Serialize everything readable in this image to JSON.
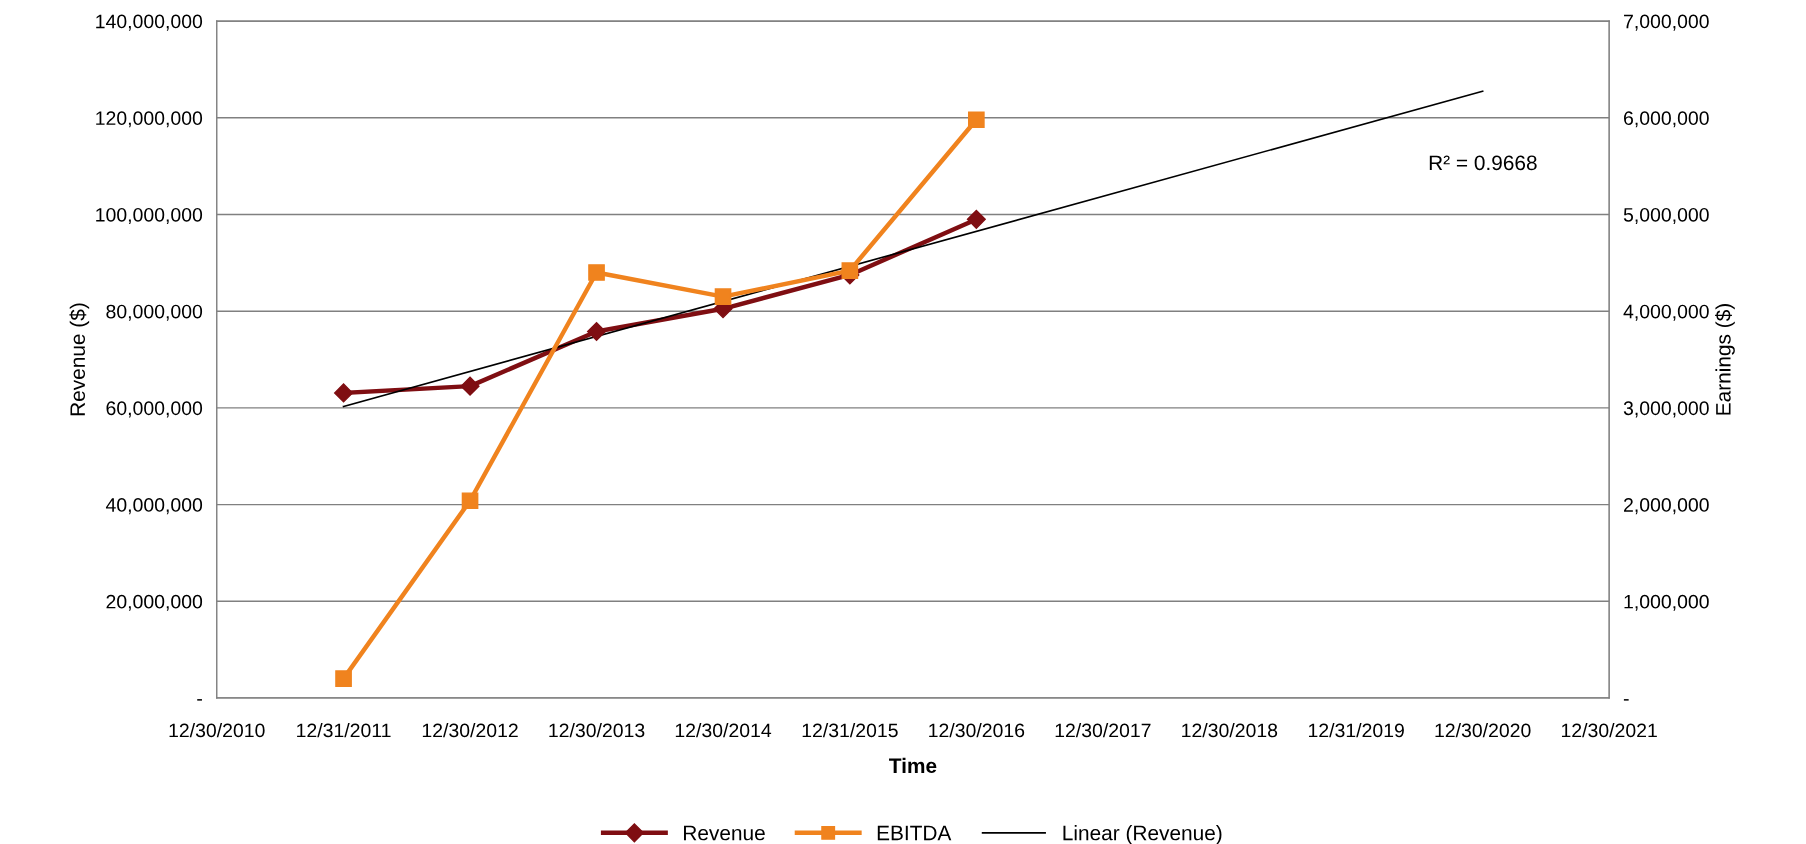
{
  "chart_data": {
    "type": "line",
    "xlabel": "Time",
    "ylabel": "Revenue ($)",
    "y2label": "Earnings ($)",
    "xlim": [
      "2010-12-30",
      "2021-12-30"
    ],
    "xticks": [
      {
        "value": "2010-12-30",
        "label": "12/30/2010"
      },
      {
        "value": "2011-12-31",
        "label": "12/31/2011"
      },
      {
        "value": "2012-12-30",
        "label": "12/30/2012"
      },
      {
        "value": "2013-12-30",
        "label": "12/30/2013"
      },
      {
        "value": "2014-12-30",
        "label": "12/30/2014"
      },
      {
        "value": "2015-12-31",
        "label": "12/31/2015"
      },
      {
        "value": "2016-12-30",
        "label": "12/30/2016"
      },
      {
        "value": "2017-12-30",
        "label": "12/30/2017"
      },
      {
        "value": "2018-12-30",
        "label": "12/30/2018"
      },
      {
        "value": "2019-12-31",
        "label": "12/31/2019"
      },
      {
        "value": "2020-12-30",
        "label": "12/30/2020"
      },
      {
        "value": "2021-12-30",
        "label": "12/30/2021"
      }
    ],
    "ylim": [
      0,
      140000000
    ],
    "yticks": [
      {
        "value": 0,
        "label": "-"
      },
      {
        "value": 20000000,
        "label": "20,000,000"
      },
      {
        "value": 40000000,
        "label": "40,000,000"
      },
      {
        "value": 60000000,
        "label": "60,000,000"
      },
      {
        "value": 80000000,
        "label": "80,000,000"
      },
      {
        "value": 100000000,
        "label": "100,000,000"
      },
      {
        "value": 120000000,
        "label": "120,000,000"
      },
      {
        "value": 140000000,
        "label": "140,000,000"
      }
    ],
    "y2lim": [
      0,
      7000000
    ],
    "y2ticks": [
      {
        "value": 0,
        "label": "-"
      },
      {
        "value": 1000000,
        "label": "1,000,000"
      },
      {
        "value": 2000000,
        "label": "2,000,000"
      },
      {
        "value": 3000000,
        "label": "3,000,000"
      },
      {
        "value": 4000000,
        "label": "4,000,000"
      },
      {
        "value": 5000000,
        "label": "5,000,000"
      },
      {
        "value": 6000000,
        "label": "6,000,000"
      },
      {
        "value": 7000000,
        "label": "7,000,000"
      }
    ],
    "x": [
      "2011-12-31",
      "2012-12-30",
      "2013-12-30",
      "2014-12-30",
      "2015-12-31",
      "2016-12-30"
    ],
    "series": [
      {
        "name": "Revenue",
        "color": "#7f0e12",
        "marker": "diamond",
        "values": [
          63100000,
          64500000,
          75800000,
          80500000,
          87500000,
          99000000
        ]
      },
      {
        "name": "EBITDA",
        "color": "#f0831e",
        "marker": "square",
        "axis": "y2",
        "values": [
          200000,
          2040000,
          4400000,
          4150000,
          4420000,
          5980000
        ]
      },
      {
        "name": "Linear (Revenue)",
        "color": "#000000",
        "marker": "none",
        "type": "line",
        "x": [
          "2011-12-31",
          "2020-12-30"
        ],
        "values": [
          60300000,
          125500000
        ]
      }
    ],
    "annotations": [
      "R² = 0.9668"
    ],
    "grid": "y",
    "legend": "bottom"
  }
}
